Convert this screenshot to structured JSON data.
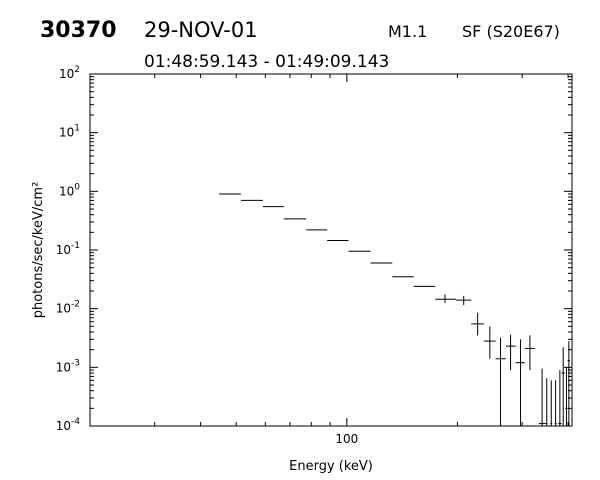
{
  "header": {
    "event_id": "30370",
    "date": "29-NOV-01",
    "goes_class": "M1.1",
    "location": "SF (S20E67)",
    "time_range": "01:48:59.143 - 01:49:09.143"
  },
  "chart_data": {
    "type": "scatter",
    "title": "",
    "xlabel": "Energy (keV)",
    "ylabel": "photons/sec/keV/cm²",
    "xscale": "log",
    "yscale": "log",
    "xlim": [
      20,
      410
    ],
    "ylim": [
      0.0001,
      100
    ],
    "x_major_ticks": [
      {
        "value": 100,
        "label": "100"
      }
    ],
    "x_minor_ticks": [
      20,
      30,
      40,
      50,
      60,
      70,
      80,
      90,
      200,
      300,
      400
    ],
    "y_ticks": [
      {
        "value": 100,
        "base": "10",
        "exp": "2"
      },
      {
        "value": 10,
        "base": "10",
        "exp": "1"
      },
      {
        "value": 1,
        "base": "10",
        "exp": "0"
      },
      {
        "value": 0.1,
        "base": "10",
        "exp": "-1"
      },
      {
        "value": 0.01,
        "base": "10",
        "exp": "-2"
      },
      {
        "value": 0.001,
        "base": "10",
        "exp": "-3"
      },
      {
        "value": 0.0001,
        "base": "10",
        "exp": "-4"
      }
    ],
    "grid": false,
    "series": [
      {
        "color": "#000000",
        "points": [
          {
            "x": 48.1,
            "xlo": 44.9,
            "xhi": 51.5,
            "y": 0.9
          },
          {
            "x": 55.1,
            "xlo": 51.5,
            "xhi": 59.1,
            "y": 0.7
          },
          {
            "x": 63.2,
            "xlo": 59.1,
            "xhi": 67.4,
            "y": 0.55
          },
          {
            "x": 72.1,
            "xlo": 67.4,
            "xhi": 77.5,
            "y": 0.34
          },
          {
            "x": 82.8,
            "xlo": 77.5,
            "xhi": 88.4,
            "y": 0.22
          },
          {
            "x": 94.4,
            "xlo": 88.4,
            "xhi": 101,
            "y": 0.145
          },
          {
            "x": 108,
            "xlo": 101,
            "xhi": 116,
            "y": 0.095
          },
          {
            "x": 124,
            "xlo": 116,
            "xhi": 133,
            "y": 0.06
          },
          {
            "x": 142,
            "xlo": 133,
            "xhi": 152,
            "y": 0.035
          },
          {
            "x": 162,
            "xlo": 152,
            "xhi": 174,
            "y": 0.024
          },
          {
            "x": 185,
            "xlo": 174,
            "xhi": 198,
            "y": 0.0145,
            "ylo": 0.0125,
            "yhi": 0.0175
          },
          {
            "x": 208,
            "xlo": 198,
            "xhi": 218,
            "y": 0.014,
            "ylo": 0.0115,
            "yhi": 0.0165
          },
          {
            "x": 227,
            "xlo": 218,
            "xhi": 236,
            "y": 0.0055,
            "ylo": 0.0035,
            "yhi": 0.0085
          },
          {
            "x": 245,
            "xlo": 236,
            "xhi": 254,
            "y": 0.0028,
            "ylo": 0.0014,
            "yhi": 0.005
          },
          {
            "x": 262,
            "xlo": 254,
            "xhi": 271,
            "y": 0.0014,
            "ylo": 0.0001,
            "yhi": 0.0032
          },
          {
            "x": 279,
            "xlo": 271,
            "xhi": 288,
            "y": 0.0023,
            "ylo": 0.0009,
            "yhi": 0.0036
          },
          {
            "x": 297,
            "xlo": 288,
            "xhi": 305,
            "y": 0.0012,
            "ylo": 0.0001,
            "yhi": 0.003
          },
          {
            "x": 315,
            "xlo": 305,
            "xhi": 325,
            "y": 0.0021,
            "ylo": 0.0009,
            "yhi": 0.0035
          },
          {
            "x": 340,
            "xlo": 333,
            "xhi": 348,
            "y": 0.00011,
            "ylo": 0.0001,
            "yhi": 0.00095
          },
          {
            "x": 350,
            "xlo": 348,
            "xhi": 352,
            "y": 0.00011,
            "ylo": 0.0001,
            "yhi": 0.00065
          },
          {
            "x": 360,
            "xlo": 358,
            "xhi": 362,
            "y": 0.00011,
            "ylo": 0.0001,
            "yhi": 0.0006
          },
          {
            "x": 370,
            "xlo": 368,
            "xhi": 372,
            "y": 0.00011,
            "ylo": 0.0001,
            "yhi": 0.0006
          },
          {
            "x": 380,
            "xlo": 376,
            "xhi": 384,
            "y": 0.00011,
            "ylo": 0.0001,
            "yhi": 0.0009
          },
          {
            "x": 388,
            "xlo": 384,
            "xhi": 392,
            "y": 0.0008,
            "ylo": 0.0001,
            "yhi": 0.0022
          },
          {
            "x": 396,
            "xlo": 393,
            "xhi": 399,
            "y": 0.0002,
            "ylo": 0.0001,
            "yhi": 0.001
          },
          {
            "x": 402,
            "xlo": 399,
            "xhi": 405,
            "y": 0.0013,
            "ylo": 0.0001,
            "yhi": 0.0028
          }
        ]
      }
    ]
  }
}
